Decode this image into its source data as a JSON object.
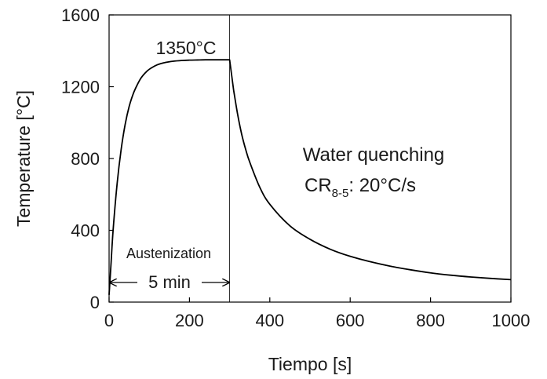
{
  "chart_data": {
    "type": "line",
    "title": "",
    "xlabel": "Tiempo [s]",
    "ylabel": "Temperature [°C]",
    "xlim": [
      0,
      1000
    ],
    "ylim": [
      0,
      1600
    ],
    "xticks": [
      0,
      200,
      400,
      600,
      800,
      1000
    ],
    "yticks": [
      0,
      400,
      800,
      1200,
      1600
    ],
    "xtick_labels": [
      "0",
      "200",
      "400",
      "600",
      "800",
      "1000"
    ],
    "ytick_labels": [
      "0",
      "400",
      "800",
      "1200",
      "1600"
    ],
    "grid": false,
    "series": [
      {
        "color": "#000000",
        "x": [
          0,
          5,
          10,
          20,
          30,
          40,
          50,
          60,
          70,
          80,
          90,
          100,
          120,
          140,
          160,
          180,
          200,
          220,
          240,
          260,
          280,
          300,
          310,
          320,
          330,
          340,
          350,
          375,
          400,
          450,
          500,
          550,
          600,
          650,
          700,
          750,
          800,
          850,
          900,
          950,
          1000
        ],
        "y": [
          40,
          220,
          400,
          660,
          850,
          990,
          1090,
          1160,
          1210,
          1250,
          1277,
          1297,
          1322,
          1335,
          1342,
          1346,
          1348,
          1349,
          1350,
          1350,
          1350,
          1350,
          1180,
          1045,
          935,
          850,
          780,
          640,
          545,
          425,
          350,
          295,
          255,
          225,
          200,
          180,
          163,
          150,
          140,
          132,
          125
        ]
      }
    ],
    "vline_x": 300,
    "annotations": {
      "peak_label": "1350°C",
      "austenization_label": "Austenization",
      "duration_label": "5 min",
      "quench_title": "Water quenching",
      "cr_main": "CR",
      "cr_sub": "8-5",
      "cr_rest": ": 20°C/s"
    }
  }
}
